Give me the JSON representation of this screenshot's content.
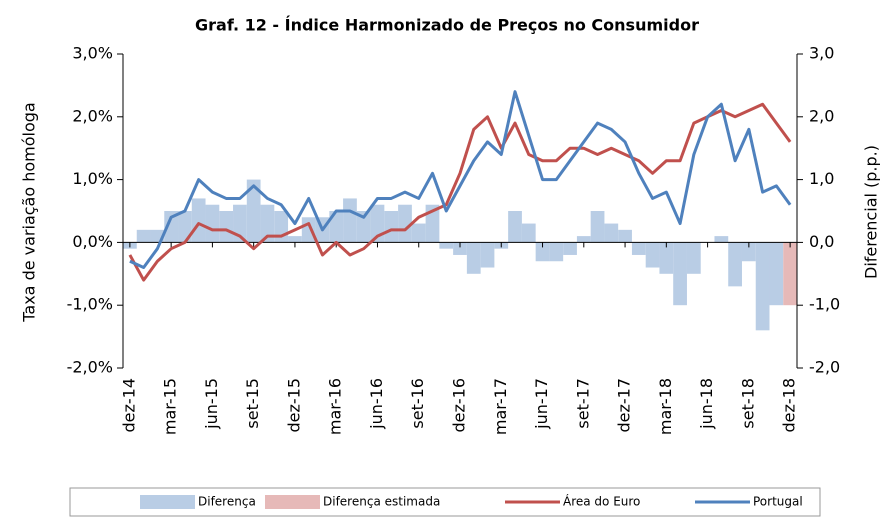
{
  "chart_data": {
    "type": "bar-line",
    "title": "Graf. 12 - Índice Harmonizado de Preços no Consumidor",
    "y_label": "Taxa de variação homóloga",
    "y2_label": "Diferencial (p.p.)",
    "categories": [
      "dez-14",
      null,
      null,
      "mar-15",
      null,
      null,
      "jun-15",
      null,
      null,
      "set-15",
      null,
      null,
      "dez-15",
      null,
      null,
      "mar-16",
      null,
      null,
      "jun-16",
      null,
      null,
      "set-16",
      null,
      null,
      "dez-16",
      null,
      null,
      "mar-17",
      null,
      null,
      "jun-17",
      null,
      null,
      "set-17",
      null,
      null,
      "dez-17",
      null,
      null,
      "mar-18",
      null,
      null,
      "jun-18",
      null,
      null,
      "set-18",
      null,
      null,
      "dez-18"
    ],
    "ylim": [
      -2,
      3
    ],
    "yticks": [
      {
        "value": -2,
        "label": "-2,0%"
      },
      {
        "value": -1,
        "label": "-1,0%"
      },
      {
        "value": 0,
        "label": "0,0%"
      },
      {
        "value": 1,
        "label": "1,0%"
      },
      {
        "value": 2,
        "label": "2,0%"
      },
      {
        "value": 3,
        "label": "3,0%"
      }
    ],
    "y2lim": [
      -2,
      3
    ],
    "y2ticks": [
      {
        "value": -2,
        "label": "-2,0"
      },
      {
        "value": -1,
        "label": "-1,0"
      },
      {
        "value": 0,
        "label": "0,0"
      },
      {
        "value": 1,
        "label": "1,0"
      },
      {
        "value": 2,
        "label": "2,0"
      },
      {
        "value": 3,
        "label": "3,0"
      }
    ],
    "series": [
      {
        "name": "Diferença",
        "color": "#b9cde5",
        "kind": "bar",
        "axis": "y2",
        "values": [
          -0.1,
          0.2,
          0.2,
          0.5,
          0.5,
          0.7,
          0.6,
          0.5,
          0.6,
          1.0,
          0.6,
          0.5,
          0.1,
          0.4,
          0.4,
          0.5,
          0.7,
          0.5,
          0.6,
          0.5,
          0.6,
          0.3,
          0.6,
          -0.1,
          -0.2,
          -0.5,
          -0.4,
          -0.1,
          0.5,
          0.3,
          -0.3,
          -0.3,
          -0.2,
          0.1,
          0.5,
          0.3,
          0.2,
          -0.2,
          -0.4,
          -0.5,
          -1.0,
          -0.5,
          0.0,
          0.1,
          -0.7,
          -0.3,
          -1.4,
          -1.0,
          null
        ]
      },
      {
        "name": "Diferença estimada",
        "color": "#e6b9b8",
        "kind": "bar",
        "axis": "y2",
        "values": [
          null,
          null,
          null,
          null,
          null,
          null,
          null,
          null,
          null,
          null,
          null,
          null,
          null,
          null,
          null,
          null,
          null,
          null,
          null,
          null,
          null,
          null,
          null,
          null,
          null,
          null,
          null,
          null,
          null,
          null,
          null,
          null,
          null,
          null,
          null,
          null,
          null,
          null,
          null,
          null,
          null,
          null,
          null,
          null,
          null,
          null,
          null,
          null,
          -1.0
        ]
      },
      {
        "name": "Área do Euro",
        "color": "#c0504d",
        "kind": "line",
        "values": [
          -0.2,
          -0.6,
          -0.3,
          -0.1,
          0.0,
          0.3,
          0.2,
          0.2,
          0.1,
          -0.1,
          0.1,
          0.1,
          0.2,
          0.3,
          -0.2,
          0.0,
          -0.2,
          -0.1,
          0.1,
          0.2,
          0.2,
          0.4,
          0.5,
          0.6,
          1.1,
          1.8,
          2.0,
          1.5,
          1.9,
          1.4,
          1.3,
          1.3,
          1.5,
          1.5,
          1.4,
          1.5,
          1.4,
          1.3,
          1.1,
          1.3,
          1.3,
          1.9,
          2.0,
          2.1,
          2.0,
          2.1,
          2.2,
          1.9,
          1.6
        ]
      },
      {
        "name": "Portugal",
        "color": "#4f81bd",
        "kind": "line",
        "values": [
          -0.3,
          -0.4,
          -0.1,
          0.4,
          0.5,
          1.0,
          0.8,
          0.7,
          0.7,
          0.9,
          0.7,
          0.6,
          0.3,
          0.7,
          0.2,
          0.5,
          0.5,
          0.4,
          0.7,
          0.7,
          0.8,
          0.7,
          1.1,
          0.5,
          0.9,
          1.3,
          1.6,
          1.4,
          2.4,
          1.7,
          1.0,
          1.0,
          1.3,
          1.6,
          1.9,
          1.8,
          1.6,
          1.1,
          0.7,
          0.8,
          0.3,
          1.4,
          2.0,
          2.2,
          1.3,
          1.8,
          0.8,
          0.9,
          0.6
        ]
      }
    ]
  }
}
